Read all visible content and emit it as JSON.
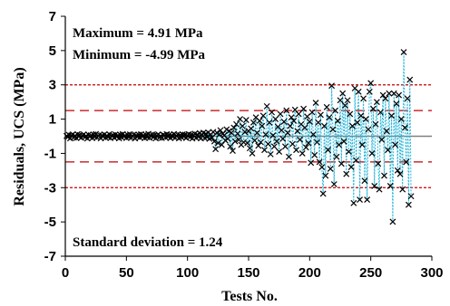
{
  "chart_data": {
    "type": "scatter",
    "xlabel": "Tests No.",
    "ylabel": "Residuals, UCS (MPa)",
    "xlim": [
      0,
      300
    ],
    "ylim": [
      -7,
      7
    ],
    "xticks": [
      0,
      50,
      100,
      150,
      200,
      250,
      300
    ],
    "yticks": [
      -7,
      -5,
      -3,
      -1,
      1,
      3,
      5,
      7
    ],
    "annotations": {
      "maximum": "Maximum = 4.91 MPa",
      "minimum": "Minimum = -4.99 MPa",
      "std": "Standard deviation = 1.24"
    },
    "reference_lines": [
      {
        "y": 0,
        "style": "solid",
        "color": "#808080"
      },
      {
        "y": 1.5,
        "style": "dashed",
        "color": "#c00000"
      },
      {
        "y": -1.5,
        "style": "dashed",
        "color": "#c00000"
      },
      {
        "y": 3,
        "style": "dotted",
        "color": "#c00000"
      },
      {
        "y": -3,
        "style": "dotted",
        "color": "#c00000"
      }
    ],
    "marker": "x",
    "connector_color": "#29b6d8",
    "series": [
      {
        "values": [
          [
            1,
            0.02
          ],
          [
            2,
            -0.05
          ],
          [
            3,
            0.08
          ],
          [
            4,
            -0.12
          ],
          [
            5,
            0.05
          ],
          [
            6,
            0.1
          ],
          [
            7,
            -0.08
          ],
          [
            8,
            0.03
          ],
          [
            9,
            -0.1
          ],
          [
            10,
            0.12
          ],
          [
            11,
            -0.02
          ],
          [
            12,
            0.07
          ],
          [
            13,
            -0.09
          ],
          [
            14,
            0.04
          ],
          [
            15,
            0.11
          ],
          [
            16,
            -0.06
          ],
          [
            17,
            0.02
          ],
          [
            18,
            -0.13
          ],
          [
            19,
            0.09
          ],
          [
            20,
            -0.03
          ],
          [
            21,
            0.06
          ],
          [
            22,
            -0.11
          ],
          [
            23,
            0.1
          ],
          [
            24,
            -0.04
          ],
          [
            25,
            0.13
          ],
          [
            26,
            -0.07
          ],
          [
            27,
            0.02
          ],
          [
            28,
            0.08
          ],
          [
            29,
            -0.12
          ],
          [
            30,
            0.05
          ],
          [
            31,
            -0.02
          ],
          [
            32,
            0.11
          ],
          [
            33,
            -0.09
          ],
          [
            34,
            0.04
          ],
          [
            35,
            -0.05
          ],
          [
            36,
            0.12
          ],
          [
            37,
            -0.1
          ],
          [
            38,
            0.03
          ],
          [
            39,
            0.07
          ],
          [
            40,
            -0.08
          ],
          [
            41,
            0.1
          ],
          [
            42,
            -0.03
          ],
          [
            43,
            0.05
          ],
          [
            44,
            -0.12
          ],
          [
            45,
            0.09
          ],
          [
            46,
            -0.06
          ],
          [
            47,
            0.13
          ],
          [
            48,
            -0.02
          ],
          [
            49,
            0.04
          ],
          [
            50,
            -0.1
          ],
          [
            51,
            0.08
          ],
          [
            52,
            -0.05
          ],
          [
            53,
            0.11
          ],
          [
            54,
            -0.08
          ],
          [
            55,
            0.02
          ],
          [
            56,
            0.1
          ],
          [
            57,
            -0.13
          ],
          [
            58,
            0.06
          ],
          [
            59,
            -0.04
          ],
          [
            60,
            0.09
          ],
          [
            61,
            -0.07
          ],
          [
            62,
            0.12
          ],
          [
            63,
            -0.02
          ],
          [
            64,
            0.05
          ],
          [
            65,
            -0.11
          ],
          [
            66,
            0.08
          ],
          [
            67,
            -0.06
          ],
          [
            68,
            0.14
          ],
          [
            69,
            -0.09
          ],
          [
            70,
            0.03
          ],
          [
            71,
            0.1
          ],
          [
            72,
            -0.05
          ],
          [
            73,
            0.07
          ],
          [
            74,
            -0.12
          ],
          [
            75,
            0.04
          ],
          [
            76,
            0.11
          ],
          [
            77,
            -0.08
          ],
          [
            78,
            0.02
          ],
          [
            79,
            -0.1
          ],
          [
            80,
            0.09
          ],
          [
            81,
            0.05
          ],
          [
            82,
            -0.07
          ],
          [
            83,
            0.12
          ],
          [
            84,
            -0.03
          ],
          [
            85,
            0.08
          ],
          [
            86,
            -0.11
          ],
          [
            87,
            0.06
          ],
          [
            88,
            -0.04
          ],
          [
            89,
            0.13
          ],
          [
            90,
            -0.08
          ],
          [
            91,
            0.03
          ],
          [
            92,
            0.1
          ],
          [
            93,
            -0.12
          ],
          [
            94,
            0.07
          ],
          [
            95,
            -0.05
          ],
          [
            96,
            0.11
          ],
          [
            97,
            -0.02
          ],
          [
            98,
            0.09
          ],
          [
            99,
            -0.1
          ],
          [
            100,
            0.04
          ],
          [
            101,
            0.12
          ],
          [
            102,
            -0.06
          ],
          [
            103,
            0.08
          ],
          [
            104,
            -0.13
          ],
          [
            105,
            0.05
          ],
          [
            106,
            0.15
          ],
          [
            107,
            -0.09
          ],
          [
            108,
            0.1
          ],
          [
            109,
            -0.04
          ],
          [
            110,
            0.18
          ],
          [
            111,
            -0.12
          ],
          [
            112,
            0.07
          ],
          [
            113,
            0.2
          ],
          [
            114,
            -0.1
          ],
          [
            115,
            0.14
          ],
          [
            116,
            -0.05
          ],
          [
            117,
            0.22
          ],
          [
            118,
            -0.15
          ],
          [
            119,
            0.1
          ],
          [
            120,
            -0.08
          ],
          [
            121,
            0.25
          ],
          [
            122,
            -0.3
          ],
          [
            123,
            -0.75
          ],
          [
            124,
            0.2
          ],
          [
            125,
            -0.4
          ],
          [
            126,
            0.1
          ],
          [
            127,
            0.35
          ],
          [
            128,
            -0.5
          ],
          [
            129,
            0.15
          ],
          [
            130,
            0.05
          ],
          [
            131,
            -0.25
          ],
          [
            132,
            0.4
          ],
          [
            133,
            -0.15
          ],
          [
            134,
            0.3
          ],
          [
            135,
            -0.6
          ],
          [
            136,
            0.2
          ],
          [
            137,
            -0.85
          ],
          [
            138,
            0.5
          ],
          [
            139,
            -0.3
          ],
          [
            140,
            0.7
          ],
          [
            141,
            0.15
          ],
          [
            142,
            -0.2
          ],
          [
            143,
            1.0
          ],
          [
            144,
            -0.5
          ],
          [
            145,
            0.6
          ],
          [
            146,
            -0.35
          ],
          [
            147,
            0.25
          ],
          [
            148,
            0.95
          ],
          [
            149,
            -0.4
          ],
          [
            150,
            0.3
          ],
          [
            151,
            -0.7
          ],
          [
            152,
            0.45
          ],
          [
            153,
            -1.0
          ],
          [
            154,
            0.8
          ],
          [
            155,
            -0.25
          ],
          [
            156,
            1.1
          ],
          [
            157,
            0.2
          ],
          [
            158,
            -0.55
          ],
          [
            159,
            0.9
          ],
          [
            160,
            -0.35
          ],
          [
            161,
            0.6
          ],
          [
            162,
            1.2
          ],
          [
            163,
            -0.8
          ],
          [
            164,
            0.1
          ],
          [
            165,
            1.75
          ],
          [
            166,
            -0.45
          ],
          [
            167,
            0.8
          ],
          [
            168,
            -1.05
          ],
          [
            169,
            1.4
          ],
          [
            170,
            0.05
          ],
          [
            171,
            -0.6
          ],
          [
            172,
            1.0
          ],
          [
            173,
            -0.3
          ],
          [
            174,
            0.55
          ],
          [
            175,
            -0.9
          ],
          [
            176,
            1.3
          ],
          [
            177,
            0.35
          ],
          [
            178,
            -0.15
          ],
          [
            179,
            0.85
          ],
          [
            180,
            -0.6
          ],
          [
            181,
            1.5
          ],
          [
            182,
            0.2
          ],
          [
            183,
            -1.2
          ],
          [
            184,
            0.6
          ],
          [
            185,
            1.1
          ],
          [
            186,
            -0.45
          ],
          [
            187,
            0.9
          ],
          [
            188,
            1.55
          ],
          [
            189,
            -0.8
          ],
          [
            190,
            0.3
          ],
          [
            191,
            1.3
          ],
          [
            192,
            -0.2
          ],
          [
            193,
            0.7
          ],
          [
            194,
            -1.0
          ],
          [
            195,
            1.6
          ],
          [
            196,
            0.5
          ],
          [
            197,
            -0.65
          ],
          [
            198,
            1.15
          ],
          [
            199,
            -0.4
          ],
          [
            200,
            0.85
          ],
          [
            201,
            -1.55
          ],
          [
            202,
            1.4
          ],
          [
            203,
            0.1
          ],
          [
            204,
            -1.1
          ],
          [
            205,
            1.95
          ],
          [
            206,
            -0.35
          ],
          [
            207,
            0.8
          ],
          [
            208,
            -1.5
          ],
          [
            209,
            1.25
          ],
          [
            210,
            -1.8
          ],
          [
            211,
            -3.35
          ],
          [
            212,
            0.6
          ],
          [
            213,
            -2.3
          ],
          [
            214,
            1.7
          ],
          [
            215,
            -0.8
          ],
          [
            216,
            1.1
          ],
          [
            217,
            -1.9
          ],
          [
            218,
            2.95
          ],
          [
            219,
            0.4
          ],
          [
            220,
            -2.8
          ],
          [
            221,
            1.5
          ],
          [
            222,
            -1.2
          ],
          [
            223,
            0.9
          ],
          [
            224,
            -0.5
          ],
          [
            225,
            2.1
          ],
          [
            226,
            -1.6
          ],
          [
            227,
            2.5
          ],
          [
            228,
            -0.3
          ],
          [
            229,
            1.8
          ],
          [
            230,
            -2.2
          ],
          [
            231,
            2.1
          ],
          [
            232,
            -0.9
          ],
          [
            233,
            1.3
          ],
          [
            234,
            -1.8
          ],
          [
            235,
            0.6
          ],
          [
            236,
            -3.9
          ],
          [
            237,
            2.8
          ],
          [
            238,
            -1.4
          ],
          [
            239,
            0.8
          ],
          [
            240,
            2.6
          ],
          [
            241,
            -3.7
          ],
          [
            242,
            1.2
          ],
          [
            243,
            -0.5
          ],
          [
            244,
            2.2
          ],
          [
            245,
            -2.6
          ],
          [
            246,
            1.0
          ],
          [
            247,
            -3.7
          ],
          [
            248,
            0.4
          ],
          [
            249,
            2.6
          ],
          [
            250,
            3.1
          ],
          [
            251,
            -1.0
          ],
          [
            252,
            1.6
          ],
          [
            253,
            -2.9
          ],
          [
            254,
            0.7
          ],
          [
            255,
            2.0
          ],
          [
            256,
            -1.6
          ],
          [
            257,
            -3.1
          ],
          [
            258,
            1.4
          ],
          [
            259,
            -0.2
          ],
          [
            260,
            2.4
          ],
          [
            261,
            -2.3
          ],
          [
            262,
            2.2
          ],
          [
            263,
            0.3
          ],
          [
            264,
            -0.8
          ],
          [
            265,
            2.5
          ],
          [
            266,
            -2.9
          ],
          [
            267,
            1.2
          ],
          [
            268,
            -4.99
          ],
          [
            269,
            2.5
          ],
          [
            270,
            -0.5
          ],
          [
            271,
            1.9
          ],
          [
            272,
            -2.0
          ],
          [
            273,
            2.4
          ],
          [
            274,
            -2.2
          ],
          [
            275,
            1.0
          ],
          [
            276,
            -3.1
          ],
          [
            277,
            4.91
          ],
          [
            278,
            0.5
          ],
          [
            279,
            -1.5
          ],
          [
            280,
            2.2
          ],
          [
            281,
            -4.0
          ],
          [
            282,
            3.3
          ],
          [
            283,
            -3.5
          ]
        ]
      }
    ]
  }
}
